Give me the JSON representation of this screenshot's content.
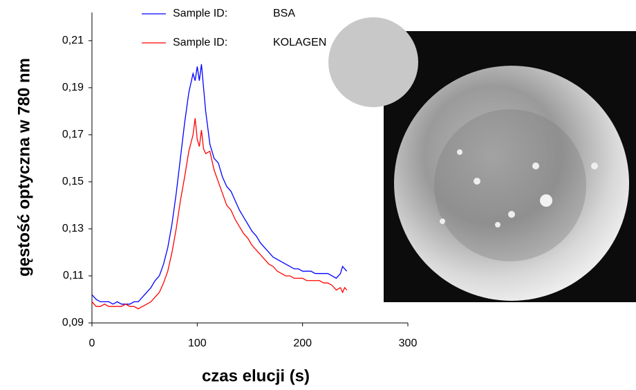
{
  "chart_data": {
    "type": "line",
    "x_label": "czas elucji (s)",
    "y_label": "gęstość optyczna w 780 nm",
    "legend_prefix": "Sample ID:",
    "xlim": [
      0,
      300
    ],
    "xticks": [
      0,
      100,
      200,
      300
    ],
    "ylim": [
      0.09,
      0.222
    ],
    "yticks": [
      {
        "value": 0.09,
        "label": "0,09"
      },
      {
        "value": 0.11,
        "label": "0,11"
      },
      {
        "value": 0.13,
        "label": "0,13"
      },
      {
        "value": 0.15,
        "label": "0,15"
      },
      {
        "value": 0.17,
        "label": "0,17"
      },
      {
        "value": 0.19,
        "label": "0,19"
      },
      {
        "value": 0.21,
        "label": "0,21"
      }
    ],
    "x": [
      0,
      4,
      8,
      12,
      16,
      20,
      24,
      28,
      32,
      36,
      40,
      44,
      48,
      52,
      56,
      60,
      64,
      68,
      72,
      76,
      80,
      84,
      88,
      92,
      96,
      98,
      100,
      102,
      104,
      106,
      108,
      112,
      116,
      120,
      124,
      128,
      132,
      136,
      140,
      144,
      148,
      152,
      156,
      160,
      164,
      168,
      172,
      176,
      180,
      184,
      188,
      192,
      196,
      200,
      204,
      208,
      212,
      216,
      220,
      224,
      228,
      232,
      236,
      238,
      240,
      242
    ],
    "series": [
      {
        "name": "BSA",
        "color": "#0000ff",
        "values": [
          0.102,
          0.1,
          0.099,
          0.099,
          0.099,
          0.098,
          0.099,
          0.098,
          0.098,
          0.098,
          0.099,
          0.099,
          0.101,
          0.103,
          0.105,
          0.108,
          0.11,
          0.115,
          0.122,
          0.132,
          0.145,
          0.16,
          0.175,
          0.188,
          0.196,
          0.193,
          0.199,
          0.193,
          0.2,
          0.19,
          0.18,
          0.166,
          0.16,
          0.158,
          0.152,
          0.148,
          0.146,
          0.142,
          0.138,
          0.135,
          0.132,
          0.129,
          0.127,
          0.124,
          0.122,
          0.12,
          0.118,
          0.117,
          0.116,
          0.115,
          0.114,
          0.113,
          0.113,
          0.112,
          0.112,
          0.112,
          0.111,
          0.111,
          0.111,
          0.111,
          0.11,
          0.109,
          0.111,
          0.114,
          0.113,
          0.112
        ]
      },
      {
        "name": "KOLAGEN",
        "color": "#ff0000",
        "values": [
          0.099,
          0.097,
          0.097,
          0.098,
          0.097,
          0.097,
          0.097,
          0.097,
          0.098,
          0.097,
          0.097,
          0.096,
          0.097,
          0.098,
          0.099,
          0.101,
          0.103,
          0.107,
          0.112,
          0.12,
          0.13,
          0.142,
          0.152,
          0.163,
          0.17,
          0.177,
          0.168,
          0.165,
          0.172,
          0.164,
          0.162,
          0.163,
          0.155,
          0.15,
          0.145,
          0.14,
          0.138,
          0.134,
          0.131,
          0.128,
          0.126,
          0.123,
          0.121,
          0.119,
          0.117,
          0.115,
          0.114,
          0.112,
          0.111,
          0.11,
          0.11,
          0.109,
          0.109,
          0.109,
          0.108,
          0.108,
          0.108,
          0.108,
          0.107,
          0.107,
          0.106,
          0.104,
          0.105,
          0.103,
          0.105,
          0.104
        ]
      }
    ]
  }
}
